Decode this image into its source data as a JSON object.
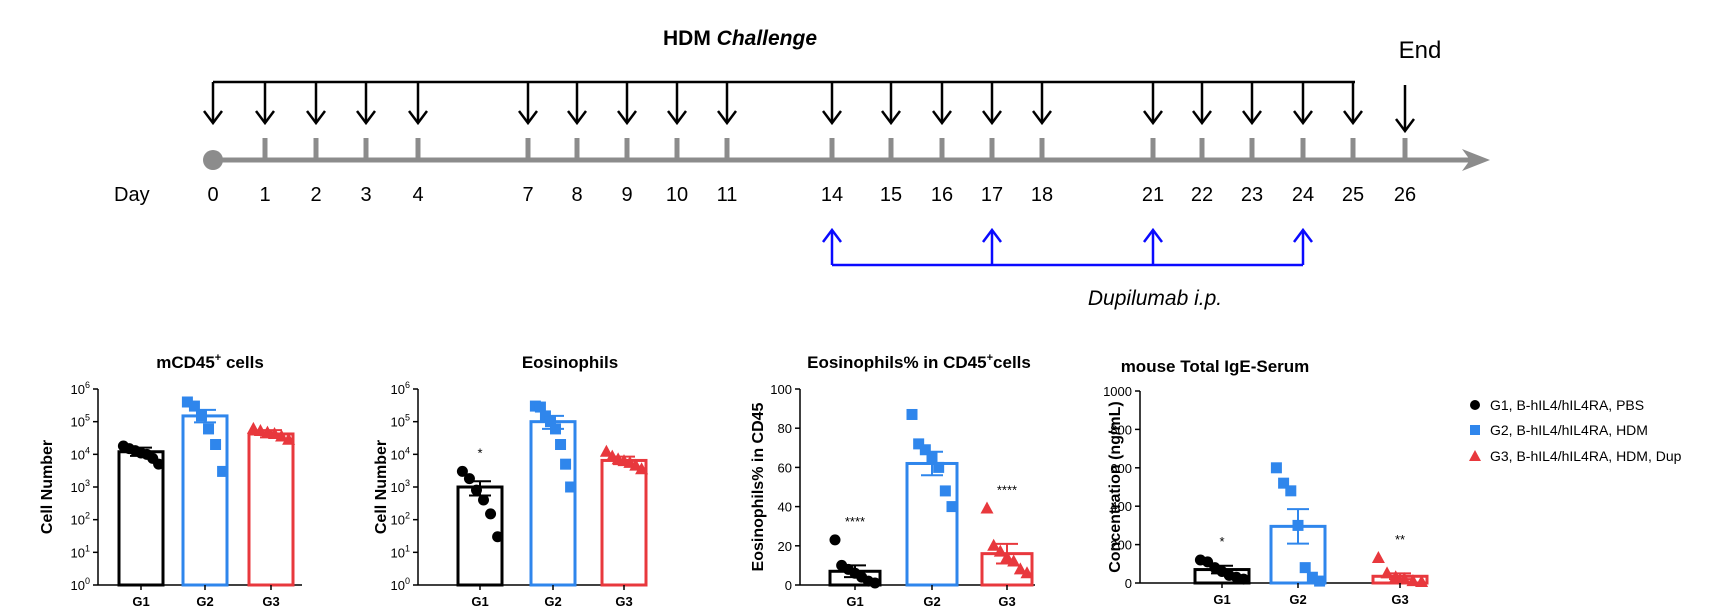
{
  "timeline": {
    "title_bold": "HDM ",
    "title_italic": "Challenge",
    "end_label": "End",
    "day_label": "Day",
    "days": [
      "0",
      "1",
      "2",
      "3",
      "4",
      "7",
      "8",
      "9",
      "10",
      "11",
      "14",
      "15",
      "16",
      "17",
      "18",
      "21",
      "22",
      "23",
      "24",
      "25",
      "26"
    ],
    "challenge_days": [
      0,
      1,
      2,
      3,
      4,
      7,
      8,
      9,
      10,
      11,
      14,
      15,
      16,
      17,
      18,
      21,
      22,
      23,
      24,
      25
    ],
    "end_day": 26,
    "dupilumab_days": [
      14,
      17,
      21,
      24
    ],
    "dupilumab_label": "Dupilumab  i.p.",
    "timeline_color": "#8c8c8c",
    "dupilumab_color": "#0a0aff"
  },
  "groups": [
    "G1",
    "G2",
    "G3"
  ],
  "group_colors": [
    "#000000",
    "#2f86ec",
    "#e8383d"
  ],
  "group_markers": [
    "circle",
    "square",
    "triangle"
  ],
  "legend": [
    "G1, B-hIL4/hIL4RA, PBS",
    "G2, B-hIL4/hIL4RA, HDM",
    "G3, B-hIL4/hIL4RA, HDM, Dup"
  ],
  "chart_data": [
    {
      "type": "bar",
      "title": "mCD45",
      "title_sup": "+",
      "title_suffix": " cells",
      "ylabel": "Cell Number",
      "yscale": "log",
      "ylim": [
        1,
        1000000
      ],
      "categories": [
        "G1",
        "G2",
        "G3"
      ],
      "values": [
        12000,
        150000,
        42000
      ],
      "errors_upper": [
        16000,
        230000,
        55000
      ],
      "errors_lower": [
        9000,
        95000,
        33000
      ],
      "points": [
        [
          18000,
          15000,
          13000,
          11000,
          10000,
          7500,
          5000
        ],
        [
          400000,
          300000,
          150000,
          60000,
          20000,
          3000
        ],
        [
          60000,
          52000,
          46000,
          42000,
          35000,
          28000
        ]
      ],
      "significance": [
        "",
        "",
        ""
      ],
      "ytick_exponents": [
        "0",
        "1",
        "2",
        "3",
        "4",
        "5",
        "6"
      ]
    },
    {
      "type": "bar",
      "title": "Eosinophils",
      "title_sup": "",
      "title_suffix": "",
      "ylabel": "Cell Number",
      "yscale": "log",
      "ylim": [
        1,
        1000000
      ],
      "categories": [
        "G1",
        "G2",
        "G3"
      ],
      "values": [
        1000,
        100000,
        6500
      ],
      "errors_upper": [
        1500,
        150000,
        8500
      ],
      "errors_lower": [
        550,
        60000,
        5000
      ],
      "points": [
        [
          3000,
          1800,
          800,
          400,
          150,
          30
        ],
        [
          300000,
          280000,
          150000,
          100000,
          60000,
          20000,
          5000,
          1000
        ],
        [
          12000,
          8500,
          7000,
          6200,
          5500,
          4500,
          3500
        ]
      ],
      "significance": [
        "*",
        "",
        ""
      ],
      "ytick_exponents": [
        "0",
        "1",
        "2",
        "3",
        "4",
        "5",
        "6"
      ]
    },
    {
      "type": "bar",
      "title": "Eosinophils% in CD45",
      "title_sup": "+",
      "title_suffix": "cells",
      "ylabel": "Eosinophils% in CD45",
      "yscale": "linear",
      "ylim": [
        0,
        100
      ],
      "yticks": [
        0,
        20,
        40,
        60,
        80,
        100
      ],
      "categories": [
        "G1",
        "G2",
        "G3"
      ],
      "values": [
        7,
        62,
        16
      ],
      "errors_upper": [
        10,
        68,
        21
      ],
      "errors_lower": [
        4,
        56,
        11
      ],
      "points": [
        [
          23,
          10,
          8,
          6,
          4,
          2,
          1
        ],
        [
          87,
          72,
          69,
          65,
          60,
          48,
          40
        ],
        [
          39,
          20,
          17,
          14,
          12,
          8,
          6
        ]
      ],
      "significance": [
        "****",
        "",
        "****"
      ]
    },
    {
      "type": "bar",
      "title": "mouse Total IgE-Serum",
      "title_sup": "",
      "title_suffix": "",
      "ylabel": "Concentration (ng/mL)",
      "yscale": "linear",
      "ylim": [
        0,
        1000
      ],
      "yticks": [
        0,
        200,
        400,
        600,
        800,
        1000
      ],
      "categories": [
        "G1",
        "G2",
        "G3"
      ],
      "values": [
        70,
        295,
        35
      ],
      "errors_upper": [
        90,
        385,
        50
      ],
      "errors_lower": [
        50,
        205,
        20
      ],
      "points": [
        [
          120,
          110,
          80,
          60,
          40,
          30,
          20
        ],
        [
          600,
          520,
          480,
          300,
          80,
          30,
          10
        ],
        [
          130,
          50,
          30,
          20,
          10,
          5
        ]
      ],
      "significance": [
        "*",
        "",
        "**"
      ]
    }
  ]
}
